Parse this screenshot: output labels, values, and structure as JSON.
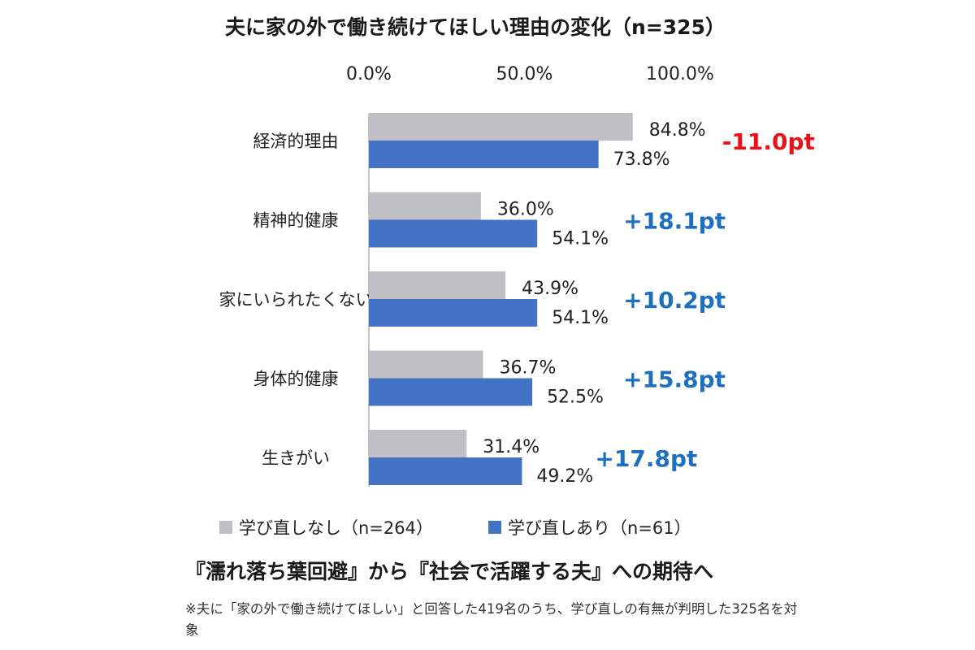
{
  "chart_data": {
    "type": "bar",
    "orientation": "horizontal",
    "title": "夫に家の外で働き続けてほしい理由の変化（n=325）",
    "categories": [
      "経済的理由",
      "精神的健康",
      "家にいられたくない",
      "身体的健康",
      "生きがい"
    ],
    "series": [
      {
        "name": "学び直しなし（n=264）",
        "color": "#c0bfc4",
        "values": [
          84.8,
          36.0,
          43.9,
          36.7,
          31.4
        ],
        "labels": [
          "84.8%",
          "36.0%",
          "43.9%",
          "36.7%",
          "31.4%"
        ]
      },
      {
        "name": "学び直しあり（n=61）",
        "color": "#4472c4",
        "values": [
          73.8,
          54.1,
          54.1,
          52.5,
          49.2
        ],
        "labels": [
          "73.8%",
          "54.1%",
          "54.1%",
          "52.5%",
          "49.2%"
        ]
      }
    ],
    "differences": [
      {
        "text": "-11.0pt",
        "color": "#e8121a"
      },
      {
        "text": "+18.1pt",
        "color": "#1f6fc0"
      },
      {
        "text": "+10.2pt",
        "color": "#1f6fc0"
      },
      {
        "text": "+15.8pt",
        "color": "#1f6fc0"
      },
      {
        "text": "+17.8pt",
        "color": "#1f6fc0"
      }
    ],
    "xticks": [
      0,
      50,
      100
    ],
    "xtick_labels": [
      "0.0%",
      "50.0%",
      "100.0%"
    ],
    "xlim": [
      0,
      100
    ],
    "xlabel": "",
    "ylabel": "",
    "axis_position": "top",
    "grid": false,
    "legend_position": "bottom"
  },
  "headline": "『濡れ落ち葉回避』から『社会で活躍する夫』への期待へ",
  "footnote": "※夫に「家の外で働き続けてほしい」と回答した419名のうち、学び直しの有無が判明した325名を対象"
}
